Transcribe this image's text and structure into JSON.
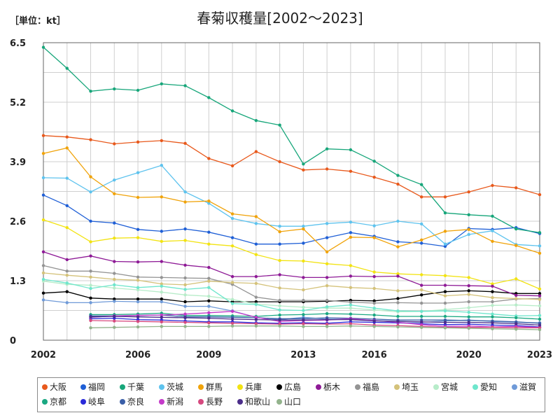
{
  "chart_data": {
    "type": "line",
    "title": "春菊収穫量[2002～2023]",
    "unit_label": "［単位：kt］",
    "ylim": [
      0,
      6.5
    ],
    "xlim": [
      2002,
      2023
    ],
    "y_ticks": [
      0,
      1.3,
      2.6,
      3.9,
      5.2,
      6.5
    ],
    "y_tick_labels": [
      "0",
      "1.3",
      "2.6",
      "3.9",
      "5.2",
      "6.5"
    ],
    "x_ticks": [
      2002,
      2006,
      2009,
      2013,
      2016,
      2020,
      2023
    ],
    "x_tick_labels": [
      "2002",
      "2006",
      "2009",
      "2013",
      "2016",
      "2020",
      "2023"
    ],
    "grid": true,
    "legend_position": "bottom",
    "x": [
      2002,
      2003,
      2004,
      2005,
      2006,
      2007,
      2008,
      2009,
      2010,
      2011,
      2012,
      2013,
      2014,
      2015,
      2016,
      2017,
      2018,
      2019,
      2020,
      2021,
      2022,
      2023
    ],
    "series": [
      {
        "name": "大阪",
        "color": "#e8591c",
        "values": [
          4.47,
          4.44,
          4.38,
          4.29,
          4.33,
          4.36,
          4.3,
          3.97,
          3.81,
          4.12,
          3.9,
          3.72,
          3.74,
          3.69,
          3.56,
          3.41,
          3.13,
          3.13,
          3.24,
          3.38,
          3.33,
          3.18
        ]
      },
      {
        "name": "福岡",
        "color": "#1f5fd6",
        "values": [
          3.17,
          2.94,
          2.6,
          2.56,
          2.42,
          2.38,
          2.43,
          2.36,
          2.24,
          2.1,
          2.1,
          2.12,
          2.24,
          2.35,
          2.27,
          2.15,
          2.12,
          2.05,
          2.44,
          2.42,
          2.46,
          2.33
        ]
      },
      {
        "name": "千葉",
        "color": "#17a67a",
        "values": [
          6.4,
          5.94,
          5.44,
          5.49,
          5.46,
          5.6,
          5.56,
          5.3,
          5.01,
          4.8,
          4.7,
          3.85,
          4.18,
          4.16,
          3.91,
          3.6,
          3.4,
          2.78,
          2.74,
          2.71,
          2.43,
          2.35
        ]
      },
      {
        "name": "茨城",
        "color": "#5ec3ee",
        "values": [
          3.55,
          3.54,
          3.24,
          3.5,
          3.66,
          3.82,
          3.24,
          2.99,
          2.66,
          2.55,
          2.49,
          2.49,
          2.55,
          2.58,
          2.5,
          2.6,
          2.54,
          2.1,
          2.31,
          2.39,
          2.09,
          2.06
        ]
      },
      {
        "name": "群馬",
        "color": "#f0a30a",
        "values": [
          4.08,
          4.2,
          3.57,
          3.2,
          3.12,
          3.13,
          3.02,
          3.04,
          2.76,
          2.7,
          2.37,
          2.43,
          1.93,
          2.25,
          2.24,
          2.04,
          2.19,
          2.38,
          2.42,
          2.16,
          2.07,
          1.9
        ]
      },
      {
        "name": "兵庫",
        "color": "#f2e312",
        "values": [
          2.63,
          2.46,
          2.15,
          2.23,
          2.24,
          2.16,
          2.18,
          2.1,
          2.06,
          1.87,
          1.74,
          1.73,
          1.67,
          1.63,
          1.49,
          1.45,
          1.43,
          1.41,
          1.37,
          1.23,
          1.34,
          1.12
        ]
      },
      {
        "name": "広島",
        "color": "#000000",
        "values": [
          1.03,
          1.06,
          0.92,
          0.9,
          0.9,
          0.9,
          0.84,
          0.86,
          0.84,
          0.84,
          0.84,
          0.84,
          0.85,
          0.87,
          0.86,
          0.91,
          0.99,
          1.06,
          1.08,
          1.06,
          1.02,
          1.02
        ]
      },
      {
        "name": "栃木",
        "color": "#8e1a96",
        "values": [
          1.93,
          1.76,
          1.84,
          1.72,
          1.71,
          1.72,
          1.64,
          1.59,
          1.39,
          1.39,
          1.43,
          1.37,
          1.37,
          1.4,
          1.39,
          1.4,
          1.2,
          1.2,
          1.19,
          1.18,
          0.98,
          0.97
        ]
      },
      {
        "name": "福島",
        "color": "#949494",
        "values": [
          1.63,
          1.51,
          1.51,
          1.46,
          1.38,
          1.37,
          1.36,
          1.35,
          1.22,
          0.94,
          0.87,
          0.87,
          0.87,
          0.83,
          0.81,
          0.82,
          0.81,
          0.81,
          0.84,
          0.84,
          0.9,
          0.91
        ]
      },
      {
        "name": "埼玉",
        "color": "#d4c27a",
        "values": [
          1.47,
          1.42,
          1.38,
          1.33,
          1.31,
          1.23,
          1.21,
          1.29,
          1.26,
          1.24,
          1.14,
          1.1,
          1.19,
          1.15,
          1.13,
          1.08,
          1.1,
          0.97,
          1.0,
          0.93,
          0.91,
          0.89
        ]
      },
      {
        "name": "宮城",
        "color": "#b7ecc9",
        "values": [
          1.29,
          1.22,
          1.2,
          1.14,
          1.1,
          1.05,
          0.99,
          0.96,
          0.89,
          0.79,
          0.75,
          0.72,
          0.7,
          0.7,
          0.66,
          0.62,
          0.63,
          0.67,
          0.71,
          0.76,
          0.77,
          0.75
        ]
      },
      {
        "name": "愛知",
        "color": "#6ee6cc",
        "values": [
          1.33,
          1.25,
          1.13,
          1.21,
          1.15,
          1.18,
          1.11,
          1.15,
          0.8,
          0.78,
          0.66,
          0.65,
          0.73,
          0.77,
          0.7,
          0.64,
          0.63,
          0.64,
          0.61,
          0.57,
          0.53,
          0.54
        ]
      },
      {
        "name": "滋賀",
        "color": "#6f9ad8",
        "values": [
          0.88,
          0.82,
          0.82,
          0.85,
          0.84,
          0.84,
          0.74,
          0.74,
          0.64,
          0.5,
          0.45,
          0.5,
          0.46,
          0.46,
          0.43,
          0.41,
          0.39,
          0.42,
          0.44,
          0.41,
          0.39,
          0.38
        ]
      },
      {
        "name": "京都",
        "color": "#1aa882",
        "values": [
          null,
          null,
          0.56,
          0.56,
          0.57,
          0.59,
          0.54,
          0.54,
          0.53,
          0.52,
          0.55,
          0.56,
          0.58,
          0.57,
          0.55,
          0.52,
          0.52,
          0.52,
          0.51,
          0.51,
          0.49,
          0.46
        ]
      },
      {
        "name": "岐阜",
        "color": "#2a2ad9",
        "values": [
          null,
          null,
          0.47,
          0.48,
          0.45,
          0.44,
          0.42,
          0.4,
          0.4,
          0.38,
          0.37,
          0.38,
          0.37,
          0.4,
          0.39,
          0.38,
          0.36,
          0.34,
          0.35,
          0.33,
          0.32,
          0.29
        ]
      },
      {
        "name": "奈良",
        "color": "#3b5fa8",
        "values": [
          null,
          null,
          0.53,
          0.53,
          0.54,
          0.55,
          0.51,
          0.51,
          0.5,
          0.49,
          0.47,
          0.47,
          0.49,
          0.48,
          0.46,
          0.44,
          0.44,
          0.44,
          0.43,
          0.42,
          0.4,
          0.37
        ]
      },
      {
        "name": "新潟",
        "color": "#c43ac9",
        "values": [
          null,
          null,
          0.5,
          0.53,
          0.54,
          0.55,
          0.57,
          0.6,
          0.63,
          0.5,
          0.41,
          0.43,
          0.44,
          0.47,
          0.43,
          0.39,
          0.34,
          0.3,
          0.31,
          0.29,
          0.3,
          0.28
        ]
      },
      {
        "name": "長野",
        "color": "#d6497f",
        "values": [
          null,
          null,
          0.43,
          0.42,
          0.41,
          0.4,
          0.39,
          0.38,
          0.37,
          0.36,
          0.35,
          0.36,
          0.35,
          0.36,
          0.33,
          0.32,
          0.3,
          0.28,
          0.28,
          0.28,
          0.27,
          0.27
        ]
      },
      {
        "name": "和歌山",
        "color": "#4b2d8a",
        "values": [
          null,
          null,
          0.51,
          0.52,
          0.51,
          0.5,
          0.49,
          0.48,
          0.46,
          0.45,
          0.44,
          0.44,
          0.45,
          0.45,
          0.42,
          0.41,
          0.4,
          0.39,
          0.39,
          0.38,
          0.36,
          0.33
        ]
      },
      {
        "name": "山口",
        "color": "#93b38c",
        "values": [
          null,
          null,
          0.27,
          0.28,
          0.29,
          0.3,
          0.3,
          0.3,
          0.31,
          0.31,
          0.31,
          0.3,
          0.3,
          0.31,
          0.3,
          0.29,
          0.28,
          0.27,
          0.26,
          0.25,
          0.24,
          0.23
        ]
      }
    ]
  }
}
